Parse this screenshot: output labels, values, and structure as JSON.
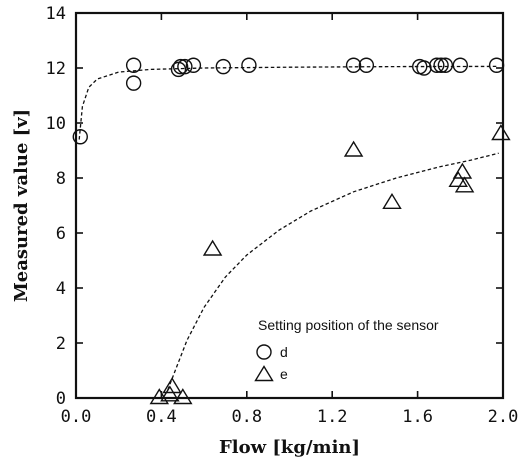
{
  "chart_data": {
    "type": "scatter",
    "xlabel": "Flow [kg/min]",
    "ylabel": "Measured value [v]",
    "xlim": [
      0.0,
      2.0
    ],
    "ylim": [
      0,
      14
    ],
    "x_ticks": [
      "0.0",
      "0.4",
      "0.8",
      "1.2",
      "1.6",
      "2.0"
    ],
    "y_ticks": [
      "0",
      "2",
      "4",
      "6",
      "8",
      "10",
      "12",
      "14"
    ],
    "grid": false,
    "legend": {
      "title": "Setting position of the sensor",
      "placement": "bottom-right"
    },
    "series": [
      {
        "name": "d",
        "marker": "circle",
        "points": [
          [
            0.02,
            9.5
          ],
          [
            0.27,
            12.1
          ],
          [
            0.27,
            11.45
          ],
          [
            0.48,
            11.95
          ],
          [
            0.49,
            12.05
          ],
          [
            0.51,
            12.05
          ],
          [
            0.55,
            12.1
          ],
          [
            0.69,
            12.05
          ],
          [
            0.81,
            12.1
          ],
          [
            1.3,
            12.1
          ],
          [
            1.36,
            12.1
          ],
          [
            1.61,
            12.05
          ],
          [
            1.63,
            12.0
          ],
          [
            1.69,
            12.1
          ],
          [
            1.71,
            12.1
          ],
          [
            1.73,
            12.1
          ],
          [
            1.8,
            12.1
          ],
          [
            1.97,
            12.1
          ]
        ]
      },
      {
        "name": "e",
        "marker": "triangle",
        "points": [
          [
            0.39,
            0.0
          ],
          [
            0.44,
            0.1
          ],
          [
            0.45,
            0.4
          ],
          [
            0.5,
            0.0
          ],
          [
            0.64,
            5.4
          ],
          [
            1.3,
            9.0
          ],
          [
            1.48,
            7.1
          ],
          [
            1.79,
            7.9
          ],
          [
            1.81,
            8.2
          ],
          [
            1.82,
            7.7
          ],
          [
            1.99,
            9.6
          ]
        ]
      }
    ],
    "fit_curves": [
      {
        "series": "d",
        "style": "dashed",
        "points": [
          [
            0.015,
            9.4
          ],
          [
            0.03,
            10.6
          ],
          [
            0.06,
            11.3
          ],
          [
            0.1,
            11.6
          ],
          [
            0.2,
            11.85
          ],
          [
            0.35,
            11.95
          ],
          [
            0.6,
            12.0
          ],
          [
            1.0,
            12.03
          ],
          [
            1.5,
            12.05
          ],
          [
            1.98,
            12.06
          ]
        ]
      },
      {
        "series": "e",
        "style": "dashed",
        "points": [
          [
            0.43,
            0.3
          ],
          [
            0.47,
            1.1
          ],
          [
            0.52,
            2.1
          ],
          [
            0.6,
            3.3
          ],
          [
            0.7,
            4.4
          ],
          [
            0.8,
            5.2
          ],
          [
            0.95,
            6.1
          ],
          [
            1.1,
            6.8
          ],
          [
            1.3,
            7.5
          ],
          [
            1.5,
            8.0
          ],
          [
            1.7,
            8.4
          ],
          [
            1.85,
            8.65
          ],
          [
            1.98,
            8.9
          ]
        ]
      }
    ]
  }
}
